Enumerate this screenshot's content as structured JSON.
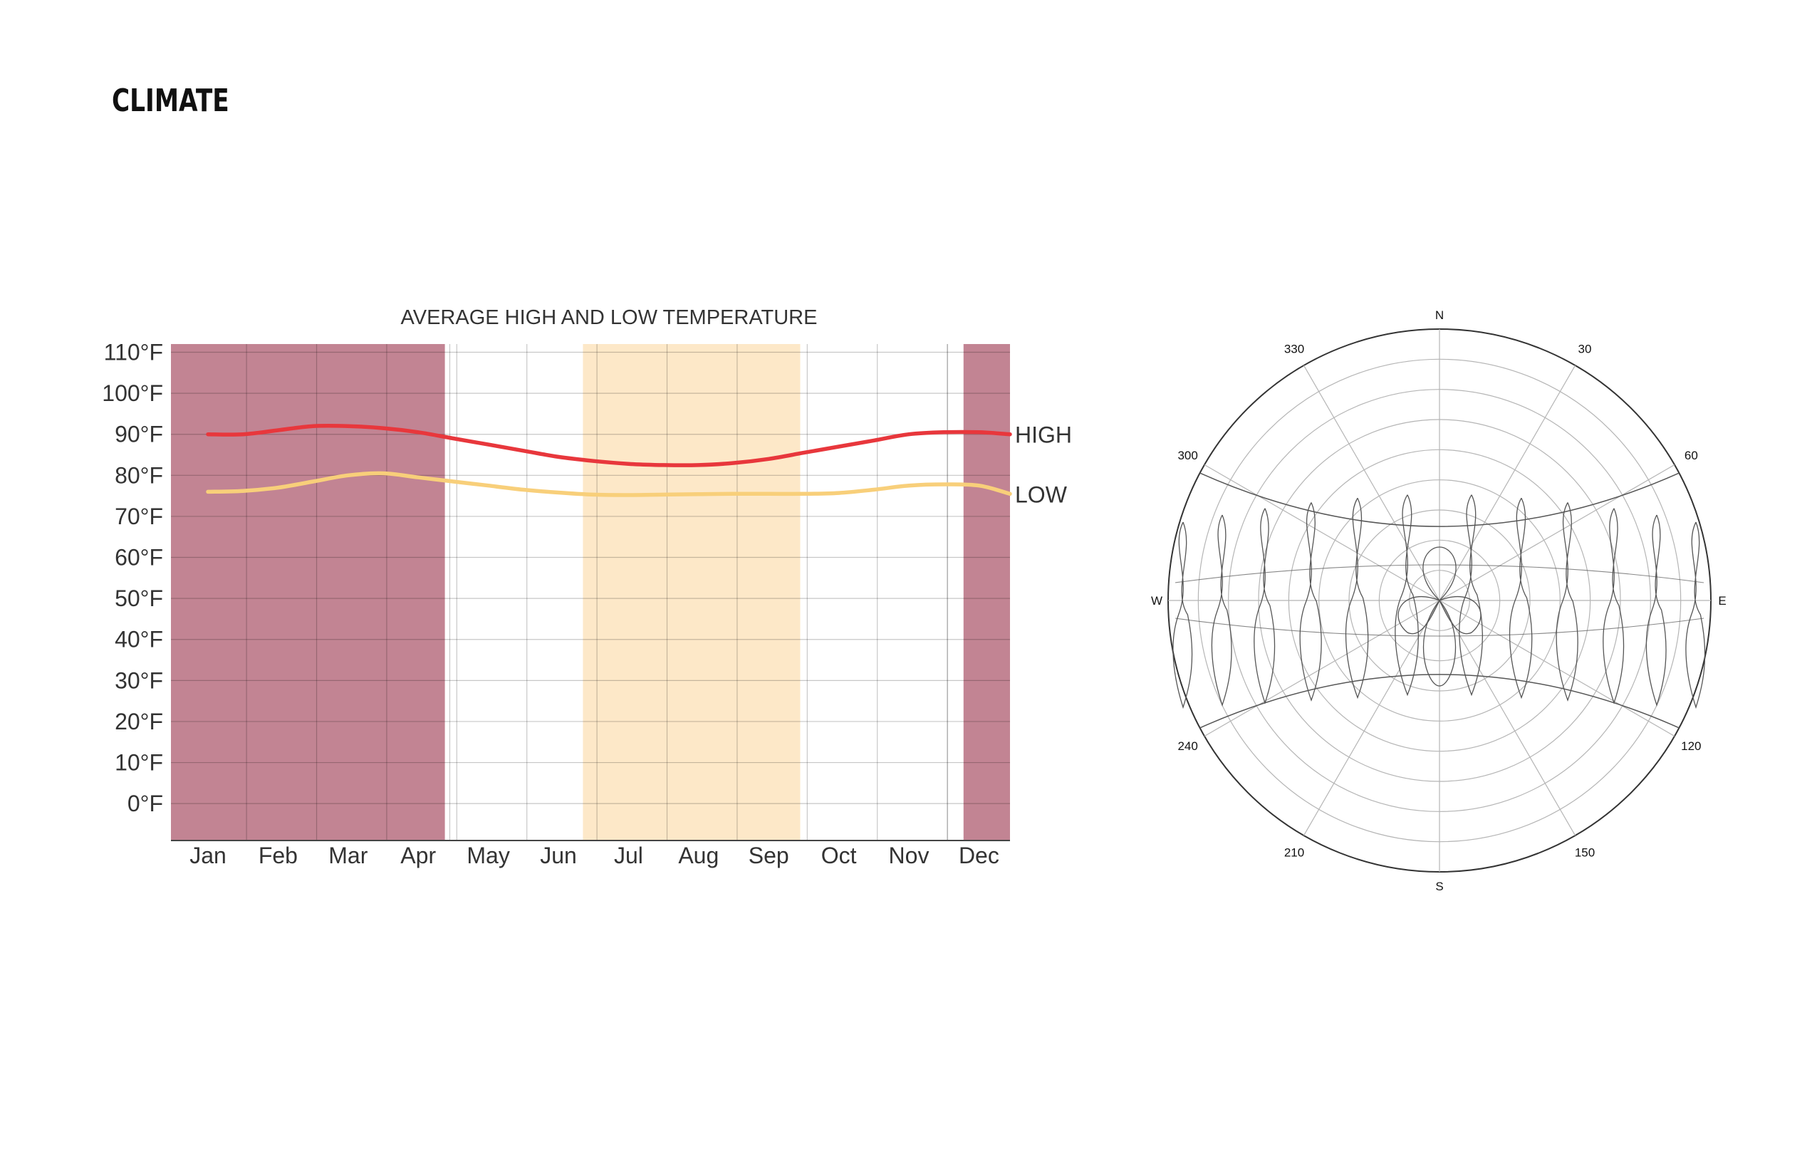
{
  "page": {
    "title": "CLIMATE"
  },
  "chart_data": [
    {
      "type": "line",
      "title": "AVERAGE HIGH AND LOW TEMPERATURE",
      "categories": [
        "Jan",
        "Feb",
        "Mar",
        "Apr",
        "May",
        "Jun",
        "Jul",
        "Aug",
        "Sep",
        "Oct",
        "Nov",
        "Dec"
      ],
      "y_ticks": [
        0,
        10,
        20,
        30,
        40,
        50,
        60,
        70,
        80,
        90,
        100,
        110
      ],
      "y_tick_labels": [
        "0°F",
        "10°F",
        "20°F",
        "30°F",
        "40°F",
        "50°F",
        "60°F",
        "70°F",
        "80°F",
        "90°F",
        "100°F",
        "110°F"
      ],
      "ylim": [
        -9,
        112
      ],
      "grid": true,
      "series": [
        {
          "name": "HIGH",
          "color": "#e8373c",
          "x": [
            0,
            0.5,
            1,
            1.5,
            2,
            2.5,
            3,
            3.5,
            4,
            4.5,
            5,
            5.5,
            6,
            6.5,
            7,
            7.5,
            8,
            8.5,
            9,
            9.5,
            10,
            10.5,
            11,
            11.7
          ],
          "values": [
            90,
            90,
            91,
            92,
            92,
            91.5,
            90.5,
            89,
            87.5,
            86,
            84.5,
            83.5,
            82.8,
            82.5,
            82.5,
            83,
            84,
            85.5,
            87,
            88.5,
            90,
            90.5,
            90.5,
            90
          ]
        },
        {
          "name": "LOW",
          "color": "#f8cf7a",
          "x": [
            0,
            0.5,
            1,
            1.5,
            2,
            2.5,
            3,
            3.5,
            4,
            4.5,
            5,
            5.5,
            6,
            6.5,
            7,
            7.5,
            8,
            8.5,
            9,
            9.5,
            10,
            10.5,
            11,
            11.7
          ],
          "values": [
            76,
            76.2,
            77,
            78.5,
            80,
            80.5,
            79.5,
            78.5,
            77.5,
            76.5,
            75.8,
            75.3,
            75.2,
            75.3,
            75.4,
            75.5,
            75.5,
            75.5,
            75.7,
            76.5,
            77.5,
            77.8,
            77.5,
            75.5
          ]
        }
      ],
      "bands": [
        {
          "from": -0.55,
          "to": 3.38,
          "color": "#c28493"
        },
        {
          "from": 5.35,
          "to": 8.45,
          "color": "#fde8c8"
        },
        {
          "from": 10.78,
          "to": 11.52,
          "color": "#c28493"
        }
      ],
      "month_dividers": [
        3.45,
        10.55
      ]
    },
    {
      "type": "polar",
      "directions": {
        "north": "N",
        "east": "E",
        "south": "S",
        "west": "W"
      },
      "angle_labels": [
        {
          "angle": 30,
          "label": "30"
        },
        {
          "angle": 60,
          "label": "60"
        },
        {
          "angle": 120,
          "label": "120"
        },
        {
          "angle": 150,
          "label": "150"
        },
        {
          "angle": 210,
          "label": "210"
        },
        {
          "angle": 240,
          "label": "240"
        },
        {
          "angle": 300,
          "label": "300"
        },
        {
          "angle": 330,
          "label": "330"
        }
      ],
      "radial_rings": 9,
      "grid": true,
      "colors": {
        "frame": "#333333",
        "grid": "#b5b5b5",
        "path": "#555555"
      }
    }
  ]
}
